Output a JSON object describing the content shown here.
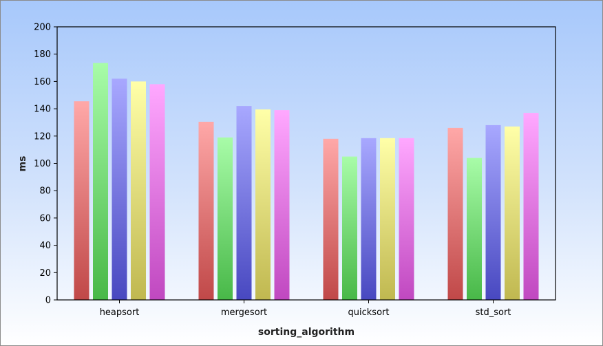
{
  "chart_data": {
    "type": "bar",
    "title": "",
    "xlabel": "sorting_algorithm",
    "ylabel": "ms",
    "ylim": [
      0,
      200
    ],
    "yticks": [
      0,
      20,
      40,
      60,
      80,
      100,
      120,
      140,
      160,
      180,
      200
    ],
    "grid": false,
    "legend": "none",
    "categories": [
      "heapsort",
      "mergesort",
      "quicksort",
      "std_sort"
    ],
    "series": [
      {
        "values": [
          145.5,
          130.5,
          118,
          126
        ],
        "color_top": "#ffa8a8",
        "color_bottom": "#c04848"
      },
      {
        "values": [
          173.5,
          119,
          105,
          104
        ],
        "color_top": "#a8fca8",
        "color_bottom": "#48b848"
      },
      {
        "values": [
          162,
          142,
          118.5,
          128
        ],
        "color_top": "#a8a8ff",
        "color_bottom": "#4848c0"
      },
      {
        "values": [
          160,
          139.5,
          118.5,
          127
        ],
        "color_top": "#ffffa8",
        "color_bottom": "#c0b850"
      },
      {
        "values": [
          158,
          139,
          118.5,
          137
        ],
        "color_top": "#ffa8ff",
        "color_bottom": "#c048c0"
      }
    ]
  }
}
